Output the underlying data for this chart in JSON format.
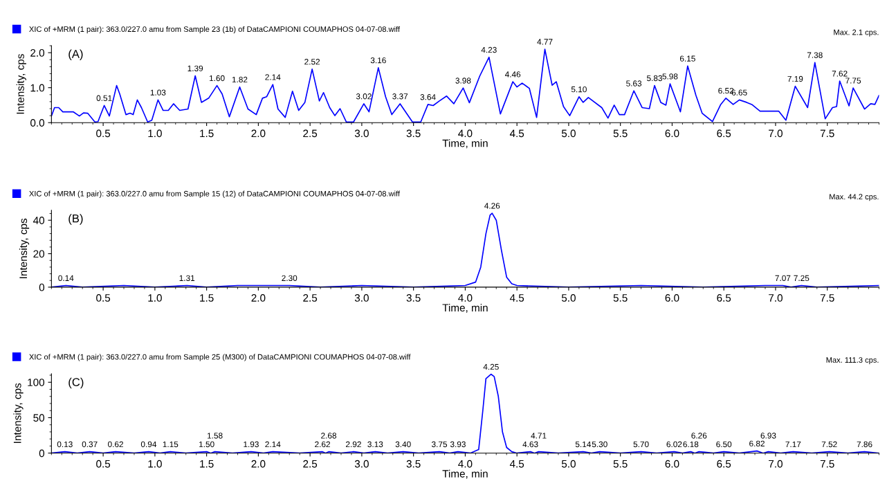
{
  "chart_data": [
    {
      "type": "line",
      "xlabel": "Time, min",
      "ylabel": "Intensity, cps",
      "legend": "top left",
      "grid": false,
      "marker": "none",
      "line_style": "solid",
      "xlim": [
        0,
        8.0
      ],
      "xticks": [
        0.5,
        {
          "value": 1,
          "label": "1.0"
        },
        1.5,
        {
          "value": 2,
          "label": "2.0"
        },
        2.5,
        {
          "value": 3,
          "label": "3.0"
        },
        3.5,
        {
          "value": 4,
          "label": "4.0"
        },
        4.5,
        {
          "value": 5,
          "label": "5.0"
        },
        5.5,
        {
          "value": 6,
          "label": "6.0"
        },
        6.5,
        {
          "value": 7,
          "label": "7.0"
        },
        7.5
      ],
      "ylim": [
        0,
        2.2
      ],
      "yticks": [
        {
          "value": 0,
          "label": "0.0"
        },
        {
          "value": 1,
          "label": "1.0"
        },
        {
          "value": 2,
          "label": "2.0"
        }
      ],
      "series": [
        {
          "name": "XIC of +MRM (1 pair): 363.0/227.0 amu from Sample 23 (1b) of DataCAMPIONI COUMAPHOS 04-07-08.wiff",
          "color": "#0000ff",
          "x": [
            0,
            0.03,
            0.07,
            0.11,
            0.21,
            0.27,
            0.31,
            0.35,
            0.42,
            0.45,
            0.51,
            0.56,
            0.63,
            0.66,
            0.72,
            0.76,
            0.79,
            0.83,
            0.87,
            0.93,
            0.97,
            1.03,
            1.08,
            1.13,
            1.18,
            1.24,
            1.32,
            1.39,
            1.45,
            1.52,
            1.6,
            1.65,
            1.72,
            1.82,
            1.9,
            1.98,
            2.04,
            2.08,
            2.14,
            2.19,
            2.26,
            2.33,
            2.39,
            2.45,
            2.52,
            2.59,
            2.63,
            2.69,
            2.74,
            2.79,
            2.85,
            2.92,
            3.02,
            3.07,
            3.16,
            3.23,
            3.29,
            3.37,
            3.49,
            3.57,
            3.64,
            3.69,
            3.75,
            3.82,
            3.89,
            3.98,
            4.04,
            4.14,
            4.23,
            4.34,
            4.46,
            4.5,
            4.55,
            4.62,
            4.69,
            4.77,
            4.84,
            4.88,
            4.95,
            5.01,
            5.1,
            5.14,
            5.19,
            5.32,
            5.38,
            5.44,
            5.49,
            5.54,
            5.63,
            5.71,
            5.78,
            5.83,
            5.89,
            5.94,
            5.98,
            6.08,
            6.15,
            6.23,
            6.29,
            6.39,
            6.47,
            6.52,
            6.59,
            6.65,
            6.72,
            6.77,
            6.85,
            7.03,
            7.1,
            7.19,
            7.31,
            7.38,
            7.48,
            7.55,
            7.59,
            7.62,
            7.71,
            7.75,
            7.86,
            7.92,
            7.96,
            8.0
          ],
          "values": [
            0.19,
            0.43,
            0.43,
            0.31,
            0.31,
            0.19,
            0.28,
            0.27,
            0.02,
            0.03,
            0.49,
            0.19,
            1.06,
            0.82,
            0.23,
            0.27,
            0.23,
            0.65,
            0.43,
            0.02,
            0.07,
            0.65,
            0.35,
            0.35,
            0.54,
            0.35,
            0.39,
            1.34,
            0.58,
            0.7,
            1.06,
            0.82,
            0.17,
            1.02,
            0.39,
            0.23,
            0.7,
            0.74,
            1.09,
            0.39,
            0.15,
            0.9,
            0.35,
            0.58,
            1.53,
            0.62,
            0.86,
            0.43,
            0.2,
            0.4,
            0.02,
            0.02,
            0.54,
            0.31,
            1.57,
            0.74,
            0.23,
            0.54,
            0.02,
            0.02,
            0.52,
            0.49,
            0.62,
            0.76,
            0.54,
            0.99,
            0.57,
            1.33,
            1.87,
            0.25,
            1.17,
            1.02,
            1.13,
            0.98,
            0.15,
            2.1,
            1.07,
            1.17,
            0.46,
            0.2,
            0.74,
            0.58,
            0.72,
            0.43,
            0.13,
            0.5,
            0.23,
            0.23,
            0.91,
            0.43,
            0.4,
            1.06,
            0.58,
            0.5,
            1.11,
            0.31,
            1.62,
            0.78,
            0.27,
            0.03,
            0.52,
            0.7,
            0.52,
            0.65,
            0.58,
            0.52,
            0.33,
            0.33,
            0.07,
            1.04,
            0.43,
            1.72,
            0.11,
            0.43,
            0.46,
            1.19,
            0.48,
            0.99,
            0.39,
            0.54,
            0.52,
            0.78
          ]
        }
      ],
      "annotations": [
        "(A)",
        "Max. 2.1 cps.",
        {
          "text": "0.51",
          "x": 0.51,
          "y": 0.49
        },
        {
          "text": "1.03",
          "x": 1.03,
          "y": 0.65
        },
        {
          "text": "1.39",
          "x": 1.39,
          "y": 1.34
        },
        {
          "text": "1.60",
          "x": 1.6,
          "y": 1.06
        },
        {
          "text": "1.82",
          "x": 1.82,
          "y": 1.02
        },
        {
          "text": "2.14",
          "x": 2.14,
          "y": 1.09
        },
        {
          "text": "2.52",
          "x": 2.52,
          "y": 1.53
        },
        {
          "text": "3.02",
          "x": 3.02,
          "y": 0.54
        },
        {
          "text": "3.16",
          "x": 3.16,
          "y": 1.57
        },
        {
          "text": "3.37",
          "x": 3.37,
          "y": 0.54
        },
        {
          "text": "3.64",
          "x": 3.64,
          "y": 0.52
        },
        {
          "text": "3.98",
          "x": 3.98,
          "y": 0.99
        },
        {
          "text": "4.23",
          "x": 4.23,
          "y": 1.87
        },
        {
          "text": "4.46",
          "x": 4.46,
          "y": 1.17
        },
        {
          "text": "4.77",
          "x": 4.77,
          "y": 2.1
        },
        {
          "text": "5.10",
          "x": 5.1,
          "y": 0.74
        },
        {
          "text": "5.63",
          "x": 5.63,
          "y": 0.91
        },
        {
          "text": "5.83",
          "x": 5.83,
          "y": 1.06
        },
        {
          "text": "5.98",
          "x": 5.98,
          "y": 1.11
        },
        {
          "text": "6.15",
          "x": 6.15,
          "y": 1.62
        },
        {
          "text": "6.52",
          "x": 6.52,
          "y": 0.7
        },
        {
          "text": "6.65",
          "x": 6.65,
          "y": 0.65
        },
        {
          "text": "7.19",
          "x": 7.19,
          "y": 1.04
        },
        {
          "text": "7.38",
          "x": 7.38,
          "y": 1.72
        },
        {
          "text": "7.62",
          "x": 7.62,
          "y": 1.19
        },
        {
          "text": "7.75",
          "x": 7.75,
          "y": 0.99
        }
      ]
    },
    {
      "type": "line",
      "xlabel": "Time, min",
      "ylabel": "Intensity, cps",
      "legend": "top left",
      "grid": false,
      "marker": "none",
      "line_style": "solid",
      "xlim": [
        0,
        8.0
      ],
      "xticks": [
        0.5,
        {
          "value": 1,
          "label": "1.0"
        },
        1.5,
        {
          "value": 2,
          "label": "2.0"
        },
        2.5,
        {
          "value": 3,
          "label": "3.0"
        },
        3.5,
        {
          "value": 4,
          "label": "4.0"
        },
        4.5,
        {
          "value": 5,
          "label": "5.0"
        },
        5.5,
        {
          "value": 6,
          "label": "6.0"
        },
        6.5,
        {
          "value": 7,
          "label": "7.0"
        },
        7.5
      ],
      "ylim": [
        0,
        46
      ],
      "yticks": [
        0,
        20,
        40
      ],
      "series": [
        {
          "name": "XIC of +MRM (1 pair): 363.0/227.0 amu from Sample 15 (12) of DataCAMPIONI COUMAPHOS 04-07-08.wiff",
          "color": "#0000ff",
          "x": [
            0,
            0.14,
            0.3,
            0.7,
            1.0,
            1.31,
            1.5,
            1.8,
            2.3,
            2.6,
            3.0,
            3.5,
            4.0,
            4.1,
            4.15,
            4.2,
            4.24,
            4.26,
            4.3,
            4.35,
            4.4,
            4.45,
            4.5,
            5.0,
            5.7,
            6.3,
            6.9,
            7.07,
            7.15,
            7.25,
            7.4,
            8.0
          ],
          "values": [
            0,
            1,
            0,
            1,
            0,
            1,
            0,
            1,
            1,
            0,
            1,
            0,
            1,
            3,
            12,
            32,
            43,
            44.2,
            40,
            22,
            6,
            2,
            1,
            0,
            1,
            0,
            1,
            1,
            0,
            1,
            0,
            1
          ]
        }
      ],
      "annotations": [
        "(B)",
        "Max. 44.2 cps.",
        {
          "text": "0.14",
          "x": 0.14,
          "y": 1
        },
        {
          "text": "1.31",
          "x": 1.31,
          "y": 1
        },
        {
          "text": "2.30",
          "x": 2.3,
          "y": 1
        },
        {
          "text": "4.26",
          "x": 4.26,
          "y": 44.2
        },
        {
          "text": "7.07",
          "x": 7.07,
          "y": 1
        },
        {
          "text": "7.25",
          "x": 7.25,
          "y": 1
        }
      ]
    },
    {
      "type": "line",
      "xlabel": "Time, min",
      "ylabel": "Intensity, cps",
      "legend": "top left",
      "grid": false,
      "marker": "none",
      "line_style": "solid",
      "xlim": [
        0,
        8.0
      ],
      "xticks": [
        0.5,
        {
          "value": 1,
          "label": "1.0"
        },
        1.5,
        {
          "value": 2,
          "label": "2.0"
        },
        2.5,
        {
          "value": 3,
          "label": "3.0"
        },
        3.5,
        {
          "value": 4,
          "label": "4.0"
        },
        4.5,
        {
          "value": 5,
          "label": "5.0"
        },
        5.5,
        {
          "value": 6,
          "label": "6.0"
        },
        6.5,
        {
          "value": 7,
          "label": "7.0"
        },
        7.5
      ],
      "ylim": [
        0,
        112
      ],
      "yticks": [
        0,
        50,
        100
      ],
      "series": [
        {
          "name": "XIC of +MRM (1 pair): 363.0/227.0 amu from Sample 25 (M300) of DataCAMPIONI COUMAPHOS 04-07-08.wiff",
          "color": "#0000ff",
          "x": [
            0,
            0.13,
            0.25,
            0.37,
            0.5,
            0.62,
            0.8,
            0.94,
            1.05,
            1.15,
            1.3,
            1.5,
            1.54,
            1.58,
            1.75,
            1.93,
            2.05,
            2.14,
            2.4,
            2.62,
            2.65,
            2.68,
            2.8,
            2.92,
            3.02,
            3.13,
            3.25,
            3.4,
            3.55,
            3.75,
            3.85,
            3.93,
            4.05,
            4.13,
            4.17,
            4.2,
            4.25,
            4.28,
            4.32,
            4.36,
            4.4,
            4.45,
            4.5,
            4.63,
            4.67,
            4.71,
            4.9,
            5.14,
            5.22,
            5.3,
            5.5,
            5.7,
            5.85,
            6.02,
            6.1,
            6.18,
            6.22,
            6.26,
            6.4,
            6.5,
            6.65,
            6.82,
            6.88,
            6.93,
            7.05,
            7.17,
            7.35,
            7.52,
            7.7,
            7.86,
            8.0
          ],
          "values": [
            0,
            2,
            0,
            2,
            0,
            2,
            0,
            2,
            0,
            2,
            0,
            2,
            0,
            2,
            0,
            2,
            0,
            2,
            0,
            2,
            0,
            2,
            0,
            2,
            0,
            2,
            0,
            2,
            0,
            2,
            0,
            2,
            0,
            5,
            60,
            105,
            111.3,
            108,
            80,
            30,
            8,
            2,
            0,
            2,
            0,
            2,
            0,
            2,
            0,
            2,
            0,
            2,
            0,
            2,
            0,
            2,
            0,
            2,
            0,
            2,
            0,
            3,
            0,
            2,
            0,
            2,
            0,
            2,
            0,
            2,
            0
          ]
        }
      ],
      "annotations": [
        "(C)",
        "Max. 111.3 cps.",
        {
          "text": "0.13",
          "x": 0.13,
          "y": 2
        },
        {
          "text": "0.37",
          "x": 0.37,
          "y": 2
        },
        {
          "text": "0.62",
          "x": 0.62,
          "y": 2
        },
        {
          "text": "0.94",
          "x": 0.94,
          "y": 2
        },
        {
          "text": "1.15",
          "x": 1.15,
          "y": 2
        },
        {
          "text": "1.50",
          "x": 1.5,
          "y": 2
        },
        {
          "text": "1.58",
          "x": 1.58,
          "y": 2
        },
        {
          "text": "1.93",
          "x": 1.93,
          "y": 2
        },
        {
          "text": "2.14",
          "x": 2.14,
          "y": 2
        },
        {
          "text": "2.62",
          "x": 2.62,
          "y": 2
        },
        {
          "text": "2.68",
          "x": 2.68,
          "y": 2
        },
        {
          "text": "2.92",
          "x": 2.92,
          "y": 2
        },
        {
          "text": "3.13",
          "x": 3.13,
          "y": 2
        },
        {
          "text": "3.40",
          "x": 3.4,
          "y": 2
        },
        {
          "text": "3.75",
          "x": 3.75,
          "y": 2
        },
        {
          "text": "3.93",
          "x": 3.93,
          "y": 2
        },
        {
          "text": "4.25",
          "x": 4.25,
          "y": 111.3
        },
        {
          "text": "4.63",
          "x": 4.63,
          "y": 2
        },
        {
          "text": "4.71",
          "x": 4.71,
          "y": 2
        },
        {
          "text": "5.14",
          "x": 5.14,
          "y": 2
        },
        {
          "text": "5.30",
          "x": 5.3,
          "y": 2
        },
        {
          "text": "5.70",
          "x": 5.7,
          "y": 2
        },
        {
          "text": "6.02",
          "x": 6.02,
          "y": 2
        },
        {
          "text": "6.18",
          "x": 6.18,
          "y": 2
        },
        {
          "text": "6.26",
          "x": 6.26,
          "y": 2
        },
        {
          "text": "6.50",
          "x": 6.5,
          "y": 2
        },
        {
          "text": "6.82",
          "x": 6.82,
          "y": 3
        },
        {
          "text": "6.93",
          "x": 6.93,
          "y": 2
        },
        {
          "text": "7.17",
          "x": 7.17,
          "y": 2
        },
        {
          "text": "7.52",
          "x": 7.52,
          "y": 2
        },
        {
          "text": "7.86",
          "x": 7.86,
          "y": 2
        }
      ]
    }
  ]
}
